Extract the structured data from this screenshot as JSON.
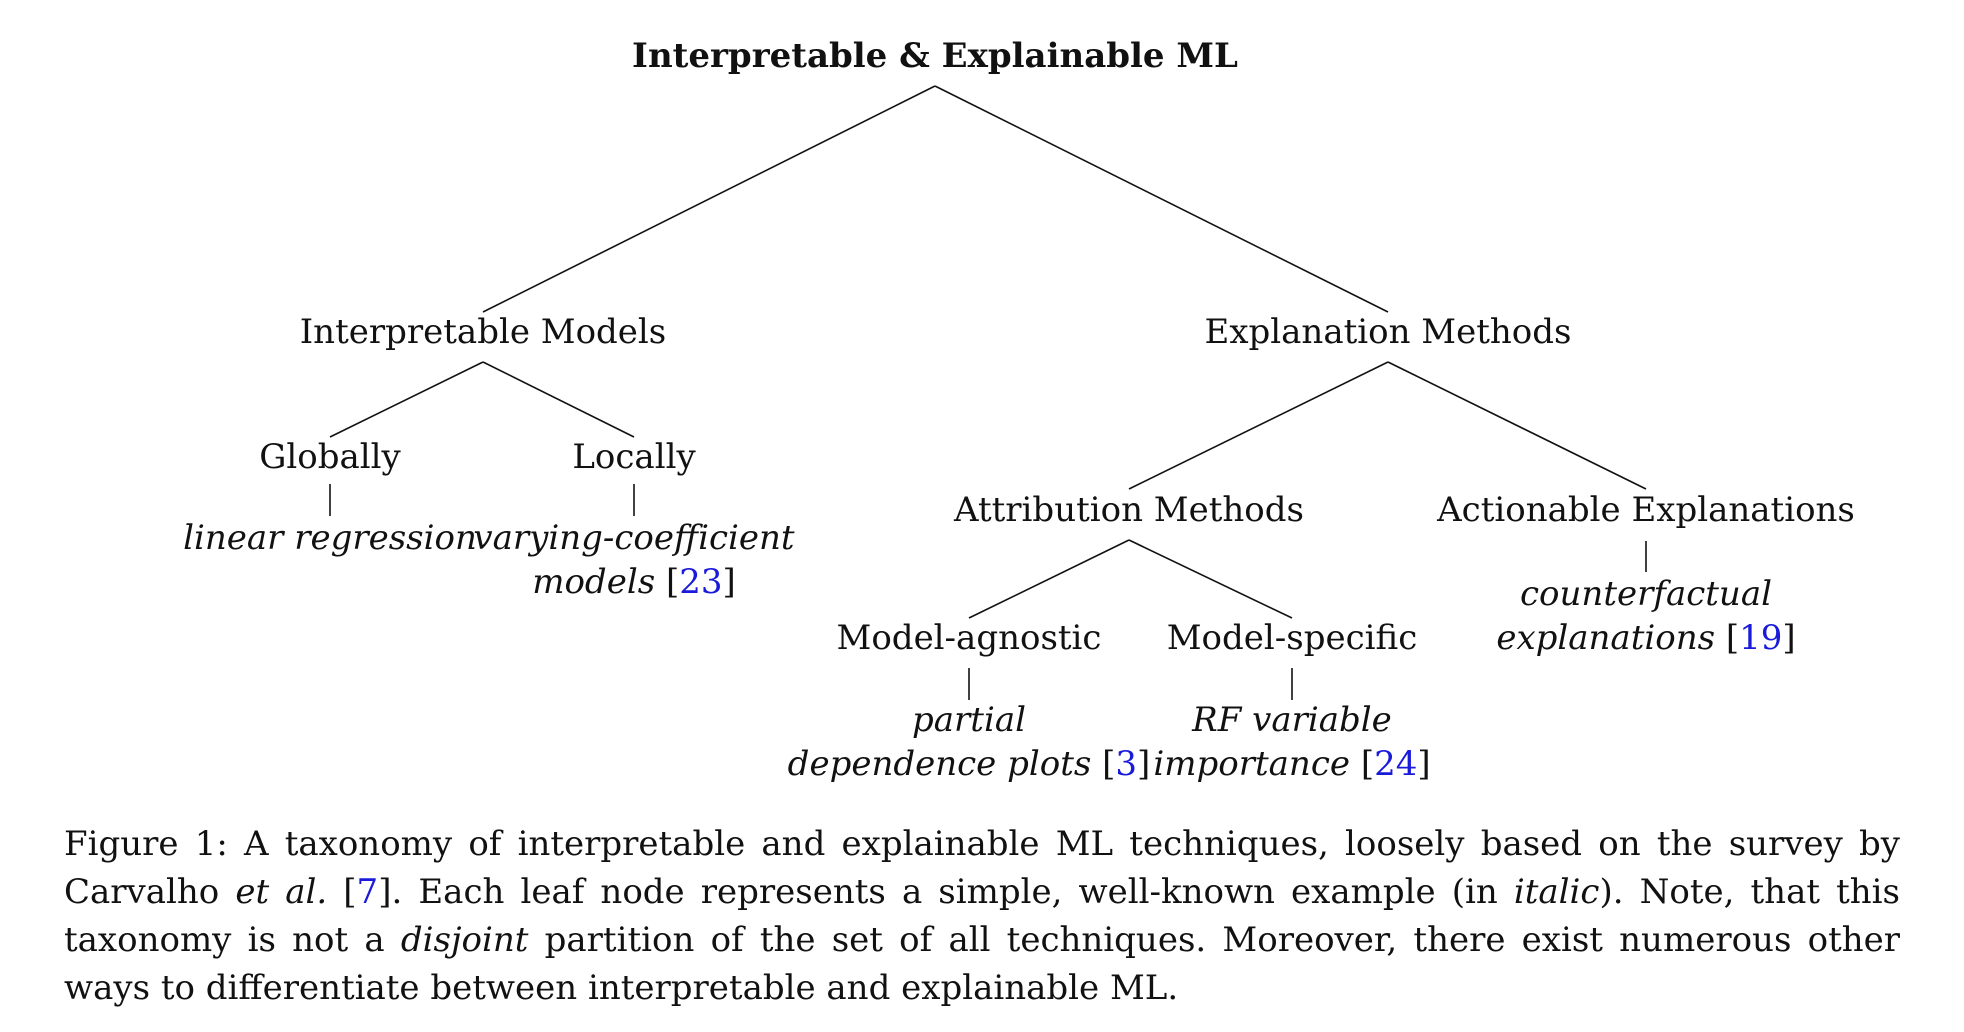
{
  "tree": {
    "root": "Interpretable & Explainable ML",
    "interpretable_models": "Interpretable Models",
    "globally": "Globally",
    "globally_example": "linear regression",
    "locally": "Locally",
    "locally_example_line1": "varying-coefficient",
    "locally_example_line2": "models",
    "locally_ref": "23",
    "explanation_methods": "Explanation Methods",
    "attribution_methods": "Attribution Methods",
    "model_agnostic": "Model-agnostic",
    "model_agnostic_example_line1": "partial",
    "model_agnostic_example_line2": "dependence plots",
    "model_agnostic_ref": "3",
    "model_specific": "Model-specific",
    "model_specific_example_line1": "RF variable",
    "model_specific_example_line2": "importance",
    "model_specific_ref": "24",
    "actionable_explanations": "Actionable Explanations",
    "actionable_example_line1": "counterfactual",
    "actionable_example_line2": "explanations",
    "actionable_ref": "19"
  },
  "caption": {
    "label": "Figure 1:",
    "part1": "A taxonomy of interpretable and explainable ML techniques, loosely based on the survey by Carvalho",
    "etal": "et al.",
    "ref": "7",
    "part2": ". Each leaf node represents a simple, well-known example (in",
    "italic_word": "italic",
    "part3": "). Note, that this taxonomy is not a",
    "disjoint": "disjoint",
    "part4": "partition of the set of all techniques. Moreover, there exist numerous other ways to differentiate between interpretable and explainable ML."
  }
}
